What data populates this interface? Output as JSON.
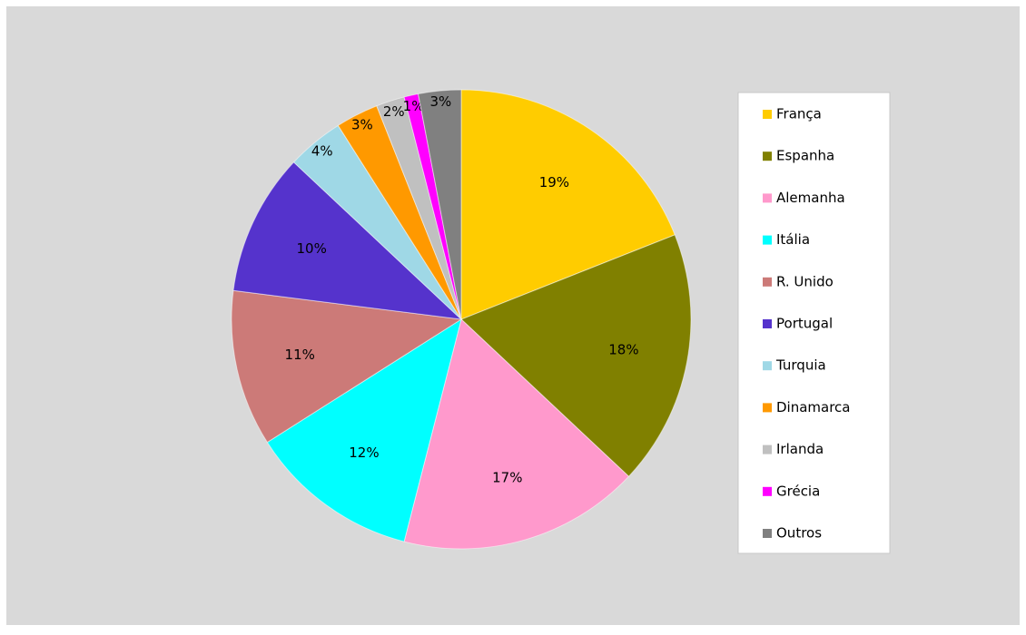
{
  "chart_data": {
    "type": "pie",
    "categories": [
      "França",
      "Espanha",
      "Alemanha",
      "Itália",
      "R. Unido",
      "Portugal",
      "Turquia",
      "Dinamarca",
      "Irlanda",
      "Grécia",
      "Outros"
    ],
    "values": [
      19,
      18,
      17,
      12,
      11,
      10,
      4,
      3,
      2,
      1,
      3
    ],
    "value_labels": [
      "19%",
      "18%",
      "17%",
      "12%",
      "11%",
      "10%",
      "4%",
      "3%",
      "2%",
      "1%",
      "3%"
    ],
    "colors": [
      "#ffcc00",
      "#808000",
      "#ff99cc",
      "#00ffff",
      "#cc7a78",
      "#5533cc",
      "#9fd8e6",
      "#ff9900",
      "#c0c0c0",
      "#ff00ff",
      "#808080"
    ],
    "legend": "right"
  }
}
